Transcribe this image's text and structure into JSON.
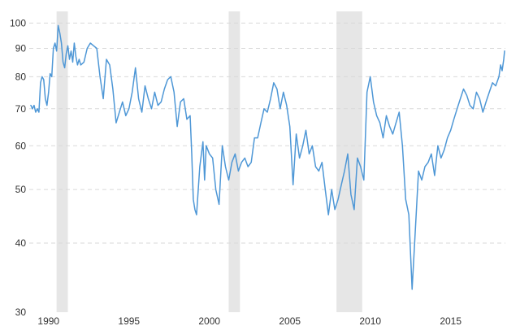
{
  "chart_data": {
    "type": "line",
    "title": "",
    "xlabel": "",
    "ylabel": "",
    "y_scale": "log",
    "xlim": [
      1988.8,
      2018.4
    ],
    "ylim": [
      30,
      105
    ],
    "y_ticks": [
      30,
      40,
      50,
      60,
      70,
      80,
      90,
      100
    ],
    "y_tick_labels": [
      "30",
      "40",
      "50",
      "60",
      "70",
      "80",
      "90",
      "100"
    ],
    "x_ticks": [
      1990,
      1995,
      2000,
      2005,
      2010,
      2015
    ],
    "x_tick_labels": [
      "1990",
      "1995",
      "2000",
      "2005",
      "2010",
      "2015"
    ],
    "grid": true,
    "line_color": "#4e97d6",
    "shading_color": "#e6e6e6",
    "shaded_periods": [
      {
        "start": 1990.5,
        "end": 1991.2
      },
      {
        "start": 2001.2,
        "end": 2001.9
      },
      {
        "start": 2007.9,
        "end": 2009.5
      }
    ],
    "series": [
      {
        "points": [
          [
            1988.9,
            71
          ],
          [
            1989.0,
            70
          ],
          [
            1989.1,
            71
          ],
          [
            1989.2,
            69
          ],
          [
            1989.3,
            70
          ],
          [
            1989.4,
            69
          ],
          [
            1989.5,
            78
          ],
          [
            1989.6,
            80
          ],
          [
            1989.7,
            79
          ],
          [
            1989.8,
            73
          ],
          [
            1989.9,
            71
          ],
          [
            1990.0,
            75
          ],
          [
            1990.1,
            81
          ],
          [
            1990.2,
            80
          ],
          [
            1990.3,
            90
          ],
          [
            1990.4,
            92
          ],
          [
            1990.5,
            89
          ],
          [
            1990.6,
            99
          ],
          [
            1990.7,
            96
          ],
          [
            1990.8,
            92
          ],
          [
            1990.9,
            85
          ],
          [
            1991.0,
            83
          ],
          [
            1991.1,
            88
          ],
          [
            1991.2,
            91
          ],
          [
            1991.3,
            86
          ],
          [
            1991.4,
            89
          ],
          [
            1991.5,
            85
          ],
          [
            1991.6,
            92
          ],
          [
            1991.7,
            87
          ],
          [
            1991.8,
            84
          ],
          [
            1991.9,
            86
          ],
          [
            1992.0,
            84
          ],
          [
            1992.2,
            85
          ],
          [
            1992.4,
            90
          ],
          [
            1992.6,
            92
          ],
          [
            1992.8,
            91
          ],
          [
            1993.0,
            90
          ],
          [
            1993.2,
            80
          ],
          [
            1993.4,
            73
          ],
          [
            1993.6,
            86
          ],
          [
            1993.8,
            84
          ],
          [
            1994.0,
            76
          ],
          [
            1994.2,
            66
          ],
          [
            1994.4,
            69
          ],
          [
            1994.6,
            72
          ],
          [
            1994.8,
            68
          ],
          [
            1995.0,
            70
          ],
          [
            1995.2,
            75
          ],
          [
            1995.4,
            83
          ],
          [
            1995.6,
            73
          ],
          [
            1995.8,
            69
          ],
          [
            1996.0,
            77
          ],
          [
            1996.2,
            73
          ],
          [
            1996.4,
            70
          ],
          [
            1996.6,
            75
          ],
          [
            1996.8,
            71
          ],
          [
            1997.0,
            72
          ],
          [
            1997.2,
            76
          ],
          [
            1997.4,
            79
          ],
          [
            1997.6,
            80
          ],
          [
            1997.8,
            75
          ],
          [
            1998.0,
            65
          ],
          [
            1998.2,
            72
          ],
          [
            1998.4,
            73
          ],
          [
            1998.6,
            67
          ],
          [
            1998.8,
            68
          ],
          [
            1998.9,
            58
          ],
          [
            1999.0,
            48
          ],
          [
            1999.1,
            46
          ],
          [
            1999.2,
            45
          ],
          [
            1999.4,
            55
          ],
          [
            1999.6,
            61
          ],
          [
            1999.7,
            52
          ],
          [
            1999.8,
            60
          ],
          [
            2000.0,
            58
          ],
          [
            2000.2,
            57
          ],
          [
            2000.4,
            50
          ],
          [
            2000.6,
            47
          ],
          [
            2000.8,
            60
          ],
          [
            2001.0,
            55
          ],
          [
            2001.2,
            52
          ],
          [
            2001.4,
            56
          ],
          [
            2001.6,
            58
          ],
          [
            2001.8,
            54
          ],
          [
            2002.0,
            56
          ],
          [
            2002.2,
            57
          ],
          [
            2002.4,
            55
          ],
          [
            2002.6,
            56
          ],
          [
            2002.8,
            62
          ],
          [
            2003.0,
            62
          ],
          [
            2003.2,
            66
          ],
          [
            2003.4,
            70
          ],
          [
            2003.6,
            69
          ],
          [
            2003.8,
            73
          ],
          [
            2004.0,
            78
          ],
          [
            2004.2,
            76
          ],
          [
            2004.4,
            70
          ],
          [
            2004.6,
            75
          ],
          [
            2004.8,
            71
          ],
          [
            2005.0,
            65
          ],
          [
            2005.2,
            51
          ],
          [
            2005.4,
            63
          ],
          [
            2005.6,
            57
          ],
          [
            2005.8,
            60
          ],
          [
            2006.0,
            64
          ],
          [
            2006.2,
            58
          ],
          [
            2006.4,
            60
          ],
          [
            2006.6,
            55
          ],
          [
            2006.8,
            54
          ],
          [
            2007.0,
            56
          ],
          [
            2007.2,
            50
          ],
          [
            2007.4,
            45
          ],
          [
            2007.6,
            50
          ],
          [
            2007.8,
            46
          ],
          [
            2008.0,
            48
          ],
          [
            2008.2,
            51
          ],
          [
            2008.4,
            54
          ],
          [
            2008.6,
            58
          ],
          [
            2008.8,
            49
          ],
          [
            2009.0,
            46
          ],
          [
            2009.2,
            57
          ],
          [
            2009.4,
            55
          ],
          [
            2009.6,
            52
          ],
          [
            2009.8,
            75
          ],
          [
            2010.0,
            80
          ],
          [
            2010.2,
            72
          ],
          [
            2010.4,
            68
          ],
          [
            2010.6,
            66
          ],
          [
            2010.8,
            62
          ],
          [
            2011.0,
            68
          ],
          [
            2011.2,
            65
          ],
          [
            2011.4,
            63
          ],
          [
            2011.6,
            66
          ],
          [
            2011.8,
            69
          ],
          [
            2012.0,
            60
          ],
          [
            2012.2,
            48
          ],
          [
            2012.4,
            45
          ],
          [
            2012.6,
            33
          ],
          [
            2012.8,
            42
          ],
          [
            2013.0,
            54
          ],
          [
            2013.2,
            52
          ],
          [
            2013.4,
            55
          ],
          [
            2013.6,
            56
          ],
          [
            2013.8,
            58
          ],
          [
            2014.0,
            53
          ],
          [
            2014.2,
            60
          ],
          [
            2014.4,
            57
          ],
          [
            2014.6,
            59
          ],
          [
            2014.8,
            62
          ],
          [
            2015.0,
            64
          ],
          [
            2015.2,
            67
          ],
          [
            2015.4,
            70
          ],
          [
            2015.6,
            73
          ],
          [
            2015.8,
            76
          ],
          [
            2016.0,
            74
          ],
          [
            2016.2,
            71
          ],
          [
            2016.4,
            70
          ],
          [
            2016.6,
            75
          ],
          [
            2016.8,
            73
          ],
          [
            2017.0,
            69
          ],
          [
            2017.2,
            72
          ],
          [
            2017.4,
            75
          ],
          [
            2017.6,
            78
          ],
          [
            2017.8,
            77
          ],
          [
            2018.0,
            80
          ],
          [
            2018.1,
            84
          ],
          [
            2018.2,
            82
          ],
          [
            2018.3,
            86
          ],
          [
            2018.35,
            89
          ]
        ]
      }
    ]
  }
}
